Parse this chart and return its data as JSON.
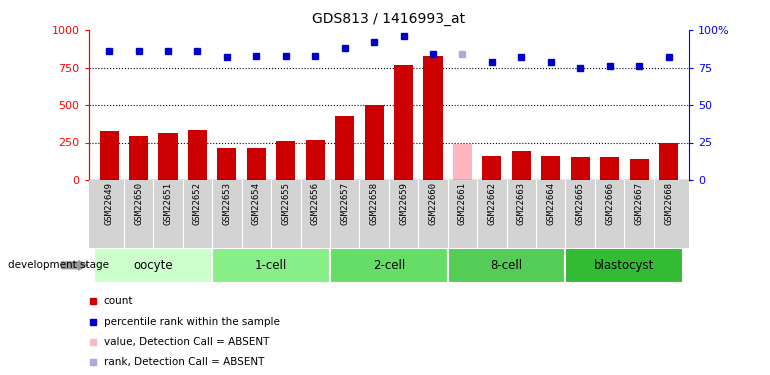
{
  "title": "GDS813 / 1416993_at",
  "samples": [
    "GSM22649",
    "GSM22650",
    "GSM22651",
    "GSM22652",
    "GSM22653",
    "GSM22654",
    "GSM22655",
    "GSM22656",
    "GSM22657",
    "GSM22658",
    "GSM22659",
    "GSM22660",
    "GSM22661",
    "GSM22662",
    "GSM22663",
    "GSM22664",
    "GSM22665",
    "GSM22666",
    "GSM22667",
    "GSM22668"
  ],
  "bar_values": [
    330,
    295,
    315,
    335,
    215,
    215,
    260,
    265,
    430,
    500,
    770,
    830,
    240,
    160,
    195,
    160,
    155,
    155,
    140,
    245
  ],
  "bar_colors": [
    "#cc0000",
    "#cc0000",
    "#cc0000",
    "#cc0000",
    "#cc0000",
    "#cc0000",
    "#cc0000",
    "#cc0000",
    "#cc0000",
    "#cc0000",
    "#cc0000",
    "#cc0000",
    "#ffb6c1",
    "#cc0000",
    "#cc0000",
    "#cc0000",
    "#cc0000",
    "#cc0000",
    "#cc0000",
    "#cc0000"
  ],
  "rank_values": [
    86,
    86,
    86,
    86,
    82,
    83,
    83,
    83,
    88,
    92,
    96,
    84,
    84,
    79,
    82,
    79,
    75,
    76,
    76,
    82
  ],
  "rank_colors": [
    "#0000cc",
    "#0000cc",
    "#0000cc",
    "#0000cc",
    "#0000cc",
    "#0000cc",
    "#0000cc",
    "#0000cc",
    "#0000cc",
    "#0000cc",
    "#0000cc",
    "#0000cc",
    "#aaaadd",
    "#0000cc",
    "#0000cc",
    "#0000cc",
    "#0000cc",
    "#0000cc",
    "#0000cc",
    "#0000cc"
  ],
  "ylim_left": [
    0,
    1000
  ],
  "ylim_right": [
    0,
    100
  ],
  "yticks_left": [
    0,
    250,
    500,
    750,
    1000
  ],
  "yticks_right": [
    0,
    25,
    50,
    75,
    100
  ],
  "groups": [
    {
      "label": "oocyte",
      "start": 0,
      "end": 3,
      "color": "#ccffcc"
    },
    {
      "label": "1-cell",
      "start": 4,
      "end": 7,
      "color": "#88ee88"
    },
    {
      "label": "2-cell",
      "start": 8,
      "end": 11,
      "color": "#66dd66"
    },
    {
      "label": "8-cell",
      "start": 12,
      "end": 15,
      "color": "#55cc55"
    },
    {
      "label": "blastocyst",
      "start": 16,
      "end": 19,
      "color": "#44bb44"
    }
  ],
  "legend_items": [
    {
      "label": "count",
      "color": "#cc0000"
    },
    {
      "label": "percentile rank within the sample",
      "color": "#0000cc"
    },
    {
      "label": "value, Detection Call = ABSENT",
      "color": "#ffb6c1"
    },
    {
      "label": "rank, Detection Call = ABSENT",
      "color": "#aaaadd"
    }
  ]
}
